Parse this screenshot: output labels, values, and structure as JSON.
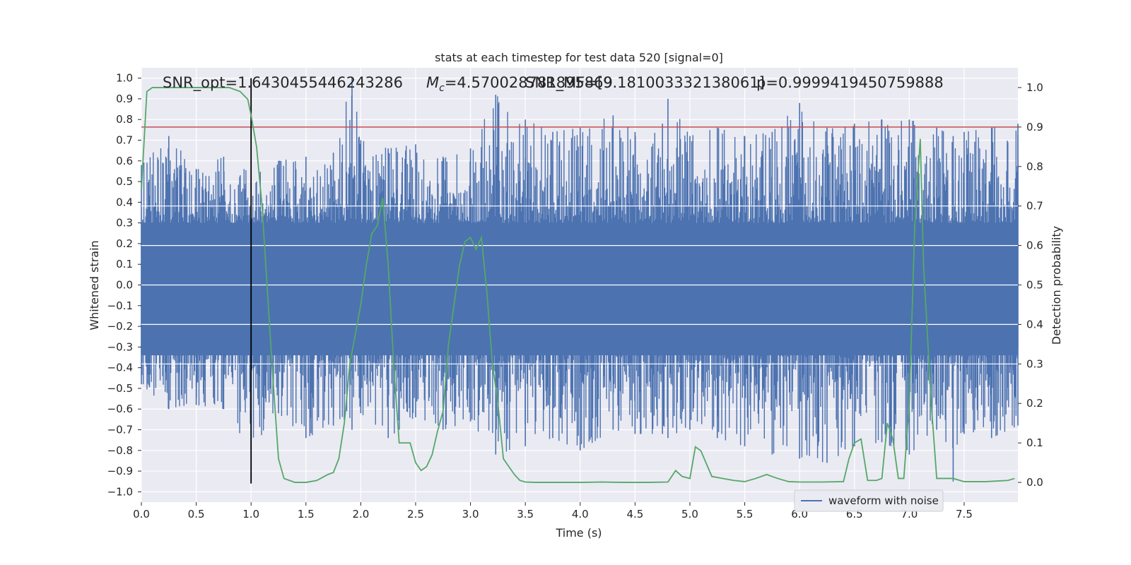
{
  "chart_data": {
    "type": "line",
    "title": "stats at each timestep for test data 520 [signal=0]",
    "xlabel": "Time (s)",
    "ylabel_left": "Whitened strain",
    "ylabel_right": "Detection probability",
    "xlim": [
      0,
      7.99
    ],
    "ylim_left": [
      -1.05,
      1.05
    ],
    "ylim_right": [
      -0.05,
      1.05
    ],
    "x_ticks": [
      0.0,
      0.5,
      1.0,
      1.5,
      2.0,
      2.5,
      3.0,
      3.5,
      4.0,
      4.5,
      5.0,
      5.5,
      6.0,
      6.5,
      7.0,
      7.5
    ],
    "x_tick_labels": [
      "0.0",
      "0.5",
      "1.0",
      "1.5",
      "2.0",
      "2.5",
      "3.0",
      "3.5",
      "4.0",
      "4.5",
      "5.0",
      "5.5",
      "6.0",
      "6.5",
      "7.0",
      "7.5"
    ],
    "y_left_ticks": [
      1.0,
      0.9,
      0.8,
      0.7,
      0.6,
      0.5,
      0.4,
      0.3,
      0.2,
      0.1,
      0.0,
      -0.1,
      -0.2,
      -0.3,
      -0.4,
      -0.5,
      -0.6,
      -0.7,
      -0.8,
      -0.9,
      -1.0
    ],
    "y_left_tick_labels": [
      "1.0",
      "0.9",
      "0.8",
      "0.7",
      "0.6",
      "0.5",
      "0.4",
      "0.3",
      "0.2",
      "0.1",
      "0.0",
      "−0.1",
      "−0.2",
      "−0.3",
      "−0.4",
      "−0.5",
      "−0.6",
      "−0.7",
      "−0.8",
      "−0.9",
      "−1.0"
    ],
    "y_right_ticks": [
      1.0,
      0.9,
      0.8,
      0.7,
      0.6,
      0.5,
      0.4,
      0.3,
      0.2,
      0.1,
      0.0
    ],
    "y_right_tick_labels": [
      "1.0",
      "0.9",
      "0.8",
      "0.7",
      "0.6",
      "0.5",
      "0.4",
      "0.3",
      "0.2",
      "0.1",
      "0.0"
    ],
    "grid": true,
    "legend_position": "lower-right",
    "colors": {
      "background": "#eaeaf2",
      "grid": "#ffffff",
      "strain": "#4c72b0",
      "probability": "#55a868",
      "threshold": "#c44e52",
      "marker": "#000000"
    },
    "annotations": {
      "snr": "SNR_opt=1.6430455446243286",
      "mc_prefix": "M",
      "mc_sub": "c",
      "mc_value": "=4.570028781895869",
      "snr_mf": "SNR_MF=[9.181003332138061]",
      "p": "p=0.9999419450759888"
    },
    "threshold_probability": 0.9,
    "merger_time": 1.0,
    "series": [
      {
        "name": "waveform with noise",
        "axis": "left",
        "envelope_x": [
          0.0,
          0.25,
          0.5,
          0.75,
          1.0,
          1.25,
          1.5,
          1.75,
          1.92,
          2.0,
          2.25,
          2.5,
          2.75,
          3.0,
          3.23,
          3.5,
          3.75,
          4.0,
          4.3,
          4.5,
          4.75,
          4.8,
          5.0,
          5.25,
          5.5,
          5.75,
          6.0,
          6.25,
          6.5,
          6.75,
          7.0,
          7.25,
          7.4,
          7.5,
          7.75,
          7.99
        ],
        "envelope_max": [
          0.58,
          0.72,
          0.56,
          0.62,
          0.54,
          0.6,
          0.62,
          0.64,
          1.0,
          0.7,
          0.66,
          0.68,
          0.62,
          0.66,
          0.92,
          0.8,
          0.74,
          0.76,
          0.82,
          0.74,
          0.78,
          0.9,
          0.72,
          0.76,
          0.72,
          0.74,
          0.88,
          0.76,
          0.78,
          0.8,
          0.8,
          0.76,
          0.72,
          0.74,
          0.76,
          0.78
        ],
        "envelope_min": [
          -0.48,
          -0.6,
          -0.58,
          -0.6,
          -0.8,
          -0.62,
          -0.74,
          -0.68,
          -0.7,
          -0.62,
          -0.74,
          -0.64,
          -0.7,
          -0.66,
          -0.82,
          -0.78,
          -0.74,
          -0.8,
          -0.7,
          -0.72,
          -0.72,
          -0.74,
          -0.7,
          -0.74,
          -0.78,
          -0.82,
          -0.84,
          -0.86,
          -0.78,
          -0.76,
          -0.82,
          -0.7,
          -0.95,
          -0.72,
          -0.74,
          -0.68
        ]
      },
      {
        "name": "",
        "axis": "right",
        "x": [
          0.0,
          0.05,
          0.1,
          0.2,
          0.4,
          0.6,
          0.8,
          0.9,
          0.97,
          1.0,
          1.05,
          1.1,
          1.2,
          1.25,
          1.3,
          1.4,
          1.5,
          1.6,
          1.7,
          1.75,
          1.8,
          1.85,
          1.9,
          2.0,
          2.05,
          2.1,
          2.15,
          2.2,
          2.25,
          2.3,
          2.35,
          2.4,
          2.45,
          2.5,
          2.55,
          2.6,
          2.65,
          2.7,
          2.75,
          2.8,
          2.9,
          2.95,
          3.0,
          3.05,
          3.1,
          3.15,
          3.2,
          3.25,
          3.3,
          3.4,
          3.45,
          3.5,
          3.6,
          3.8,
          4.0,
          4.2,
          4.4,
          4.6,
          4.8,
          4.87,
          4.93,
          5.0,
          5.05,
          5.1,
          5.2,
          5.3,
          5.4,
          5.5,
          5.6,
          5.7,
          5.75,
          5.8,
          5.9,
          6.0,
          6.2,
          6.4,
          6.45,
          6.5,
          6.56,
          6.62,
          6.7,
          6.75,
          6.8,
          6.85,
          6.9,
          6.95,
          7.0,
          7.05,
          7.1,
          7.13,
          7.2,
          7.25,
          7.3,
          7.4,
          7.5,
          7.7,
          7.9,
          7.96
        ],
        "y": [
          0.74,
          0.99,
          1.0,
          1.0,
          1.0,
          1.0,
          1.0,
          0.99,
          0.97,
          0.93,
          0.85,
          0.7,
          0.26,
          0.06,
          0.01,
          0.0,
          0.0,
          0.005,
          0.02,
          0.025,
          0.06,
          0.15,
          0.3,
          0.45,
          0.55,
          0.63,
          0.65,
          0.72,
          0.55,
          0.3,
          0.1,
          0.1,
          0.1,
          0.05,
          0.03,
          0.04,
          0.07,
          0.13,
          0.18,
          0.35,
          0.55,
          0.61,
          0.62,
          0.59,
          0.62,
          0.48,
          0.3,
          0.2,
          0.06,
          0.02,
          0.005,
          0.001,
          0.0,
          0.0,
          0.0,
          0.001,
          0.0,
          0.0,
          0.001,
          0.03,
          0.015,
          0.01,
          0.09,
          0.08,
          0.015,
          0.01,
          0.005,
          0.002,
          0.01,
          0.02,
          0.015,
          0.01,
          0.002,
          0.001,
          0.001,
          0.002,
          0.06,
          0.1,
          0.11,
          0.005,
          0.005,
          0.01,
          0.15,
          0.11,
          0.01,
          0.01,
          0.2,
          0.65,
          0.87,
          0.55,
          0.2,
          0.01,
          0.01,
          0.01,
          0.002,
          0.002,
          0.005,
          0.01
        ]
      }
    ]
  }
}
